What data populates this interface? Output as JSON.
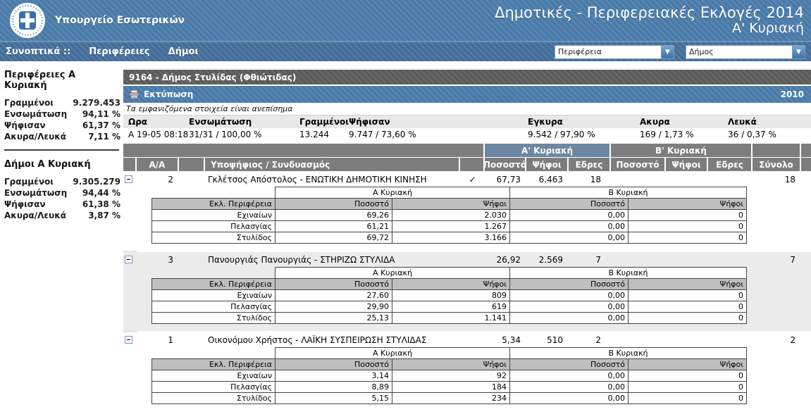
{
  "header": {
    "ministry": "Υπουργείο Εσωτερικών",
    "title": "Δημοτικές - Περιφερειακές Εκλογές 2014",
    "subtitle": "Α' Κυριακή"
  },
  "nav": {
    "items": [
      "Συνοπτικά ::",
      "Περιφέρειες",
      "Δήμοι"
    ],
    "region_select": "Περιφέρεια",
    "municipality_select": "Δήμος",
    "dropdown_arrow_icon": "▼"
  },
  "sidebar": {
    "sections": [
      {
        "title": "Περιφέρειες Α Κυριακή",
        "rows": [
          {
            "label": "Γραμμένοι",
            "value": "9.279.453"
          },
          {
            "label": "Ενσωμάτωση",
            "value": "94,11 %"
          },
          {
            "label": "Ψήφισαν",
            "value": "61,37 %"
          },
          {
            "label": "Ακυρα/Λευκά",
            "value": "7,11 %"
          }
        ]
      },
      {
        "title": "Δήμοι Α Κυριακή",
        "rows": [
          {
            "label": "Γραμμένοι",
            "value": "9.305.279"
          },
          {
            "label": "Ενσωμάτωση",
            "value": "94,44 %"
          },
          {
            "label": "Ψήφισαν",
            "value": "61,38 %"
          },
          {
            "label": "Ακυρα/Λευκά",
            "value": "3,87 %"
          }
        ]
      }
    ]
  },
  "main": {
    "municipality_header": "9164 - Δήμος Στυλίδας (Φθιώτιδας)",
    "print_label": "Εκτύπωση",
    "year": "2010",
    "note": "Τα εμφανιζόμενα στοιχεία είναι ανεπίσημα",
    "stats": {
      "headers": [
        "Ωρα",
        "Ενσωμάτωση",
        "Γραμμένοι",
        "Ψήφισαν",
        "Εγκυρα",
        "Ακυρα",
        "Λευκά"
      ],
      "values": [
        "Α 19-05 08:18",
        "31/31 / 100,00 %",
        "13.244",
        "9.747 / 73,60 %",
        "9.542 / 97,90 %",
        "169 / 1,73 %",
        "36 / 0,37 %"
      ]
    },
    "results": {
      "group_headers": [
        "Α' Κυριακή",
        "Β' Κυριακή"
      ],
      "columns": {
        "aa": "Α/Α",
        "candidate": "Υποψήφιος / Συνδυασμός",
        "pct": "Ποσοστό",
        "votes": "Ψήφοι",
        "seats": "Εδρες",
        "total": "Σύνολο"
      },
      "detail_columns": {
        "group_a": "Α Κυριακή",
        "group_b": "Β Κυριακή",
        "district": "Εκλ. Περιφέρεια",
        "pct": "Ποσοστό",
        "votes": "Ψήφοι"
      },
      "elected_mark": "✓",
      "candidates": [
        {
          "aa": "2",
          "name": "Γκλέτσος Απόστολος - ΕΝΩΤΙΚΗ ΔΗΜΟΤΙΚΗ ΚΙΝΗΣΗ",
          "elected": true,
          "a": {
            "pct": "67,73",
            "votes": "6.463",
            "seats": "18"
          },
          "b": {
            "pct": "",
            "votes": "",
            "seats": ""
          },
          "total": "18",
          "districts": [
            {
              "name": "Εχιναίων",
              "a_pct": "69,26",
              "a_votes": "2.030",
              "b_pct": "0,00",
              "b_votes": "0"
            },
            {
              "name": "Πελασγίας",
              "a_pct": "61,21",
              "a_votes": "1.267",
              "b_pct": "0,00",
              "b_votes": "0"
            },
            {
              "name": "Στυλίδος",
              "a_pct": "69,72",
              "a_votes": "3.166",
              "b_pct": "0,00",
              "b_votes": "0"
            }
          ]
        },
        {
          "aa": "3",
          "name": "Πανουργιάς Πανουργιάς - ΣΤΗΡΙΖΩ ΣΤΥΛΙΔΑ",
          "elected": false,
          "a": {
            "pct": "26,92",
            "votes": "2.569",
            "seats": "7"
          },
          "b": {
            "pct": "",
            "votes": "",
            "seats": ""
          },
          "total": "7",
          "districts": [
            {
              "name": "Εχιναίων",
              "a_pct": "27,60",
              "a_votes": "809",
              "b_pct": "0,00",
              "b_votes": "0"
            },
            {
              "name": "Πελασγίας",
              "a_pct": "29,90",
              "a_votes": "619",
              "b_pct": "0,00",
              "b_votes": "0"
            },
            {
              "name": "Στυλίδος",
              "a_pct": "25,13",
              "a_votes": "1.141",
              "b_pct": "0,00",
              "b_votes": "0"
            }
          ]
        },
        {
          "aa": "1",
          "name": "Οικονόμου Χρήστος - ΛΑΪΚΗ ΣΥΣΠΕΙΡΩΣΗ ΣΤΥΛΙΔΑΣ",
          "elected": false,
          "a": {
            "pct": "5,34",
            "votes": "510",
            "seats": "2"
          },
          "b": {
            "pct": "",
            "votes": "",
            "seats": ""
          },
          "total": "2",
          "districts": [
            {
              "name": "Εχιναίων",
              "a_pct": "3,14",
              "a_votes": "92",
              "b_pct": "0,00",
              "b_votes": "0"
            },
            {
              "name": "Πελασγίας",
              "a_pct": "8,89",
              "a_votes": "184",
              "b_pct": "0,00",
              "b_votes": "0"
            },
            {
              "name": "Στυλίδος",
              "a_pct": "5,15",
              "a_votes": "234",
              "b_pct": "0,00",
              "b_votes": "0"
            }
          ]
        }
      ]
    }
  },
  "colors": {
    "header_blue": "#4a7cab",
    "nav_blue": "#456f9c",
    "bar_gray": "#5e5e5e",
    "table_header_gray": "#7d7d7d",
    "group_a_blue": "#6d87a3",
    "stripe_gray": "#ebebeb",
    "gutter_blue": "#dce4f0",
    "subheader_gray": "#bfbfbf"
  }
}
